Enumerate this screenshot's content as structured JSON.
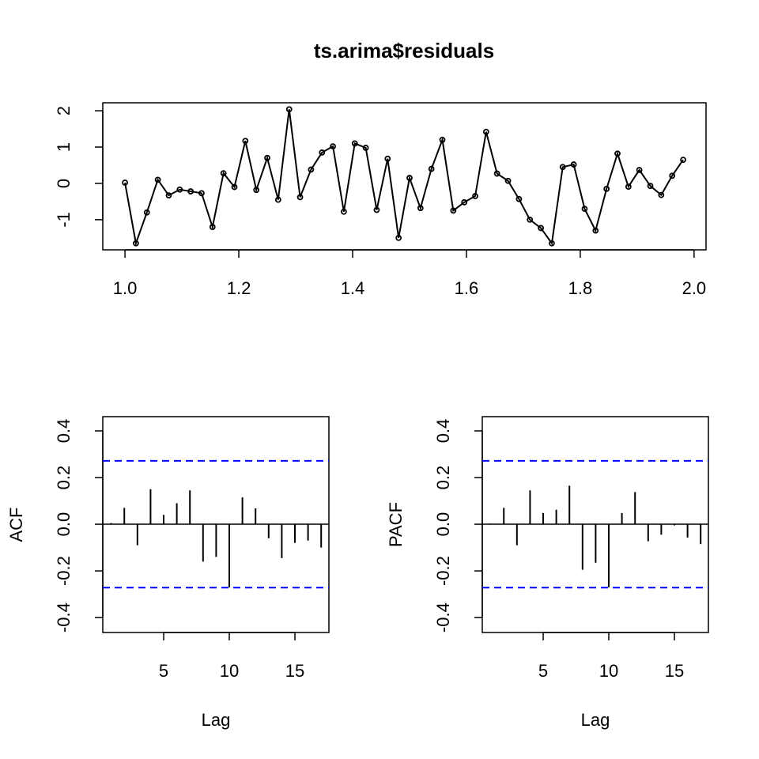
{
  "chart_data": [
    {
      "type": "line",
      "title": "ts.arima$residuals",
      "color": "#000000",
      "x": [
        1,
        1.0192,
        1.0385,
        1.0577,
        1.0769,
        1.0962,
        1.1154,
        1.1346,
        1.1538,
        1.1731,
        1.1923,
        1.2115,
        1.2308,
        1.25,
        1.2692,
        1.2885,
        1.3077,
        1.3269,
        1.3462,
        1.3654,
        1.3846,
        1.4038,
        1.4231,
        1.4423,
        1.4615,
        1.4808,
        1.5,
        1.5192,
        1.5385,
        1.5577,
        1.5769,
        1.5962,
        1.6154,
        1.6346,
        1.6538,
        1.6731,
        1.6923,
        1.7115,
        1.7308,
        1.75,
        1.7692,
        1.7885,
        1.8077,
        1.8269,
        1.8462,
        1.8654,
        1.8846,
        1.9038,
        1.9231,
        1.9423,
        1.9615,
        1.9808
      ],
      "values": [
        0.02,
        -1.65,
        -0.8,
        0.1,
        -0.33,
        -0.17,
        -0.22,
        -0.27,
        -1.2,
        0.28,
        -0.1,
        1.17,
        -0.18,
        0.7,
        -0.45,
        2.04,
        -0.38,
        0.38,
        0.85,
        1.02,
        -0.78,
        1.1,
        0.98,
        -0.73,
        0.68,
        -1.5,
        0.15,
        -0.68,
        0.4,
        1.2,
        -0.75,
        -0.52,
        -0.35,
        1.42,
        0.27,
        0.07,
        -0.43,
        -1.0,
        -1.23,
        -1.65,
        0.45,
        0.52,
        -0.7,
        -1.3,
        -0.15,
        0.82,
        -0.09,
        0.37,
        -0.07,
        -0.32,
        0.21,
        0.65
      ],
      "xlim": [
        0.961,
        2.021
      ],
      "ylim": [
        -1.83,
        2.22
      ],
      "xticks": [
        {
          "value": 1,
          "label": "1.0"
        },
        1.2,
        1.4,
        1.6,
        1.8,
        {
          "value": 2,
          "label": "2.0"
        }
      ],
      "yticks": [
        -1,
        0,
        1,
        2
      ]
    },
    {
      "type": "acf",
      "y_label": "ACF",
      "x_label": "Lag",
      "color": "#000000",
      "ci_color": "#0000ff",
      "ci": 0.2718,
      "x": [
        1,
        2,
        3,
        4,
        5,
        6,
        7,
        8,
        9,
        10,
        11,
        12,
        13,
        14,
        15,
        16,
        17
      ],
      "values": [
        0.005,
        0.07,
        -0.09,
        0.15,
        0.04,
        0.09,
        0.145,
        -0.16,
        -0.14,
        -0.27,
        0.115,
        0.068,
        -0.06,
        -0.145,
        -0.08,
        -0.07,
        -0.1
      ],
      "xlim": [
        0.36,
        17.59
      ],
      "ylim": [
        -0.464,
        0.461
      ],
      "xticks": [
        5,
        10,
        15
      ],
      "yticks": [
        -0.4,
        -0.2,
        {
          "value": 0,
          "label": "0.0"
        },
        0.2,
        0.4
      ]
    },
    {
      "type": "acf",
      "y_label": "PACF",
      "x_label": "Lag",
      "color": "#000000",
      "ci_color": "#0000ff",
      "ci": 0.2718,
      "x": [
        1,
        2,
        3,
        4,
        5,
        6,
        7,
        8,
        9,
        10,
        11,
        12,
        13,
        14,
        15,
        16,
        17
      ],
      "values": [
        0.003,
        0.07,
        -0.09,
        0.145,
        0.048,
        0.062,
        0.165,
        -0.195,
        -0.165,
        -0.27,
        0.048,
        0.138,
        -0.073,
        -0.045,
        -0.005,
        -0.057,
        -0.085
      ],
      "xlim": [
        0.36,
        17.59
      ],
      "ylim": [
        -0.464,
        0.461
      ],
      "xticks": [
        5,
        10,
        15
      ],
      "yticks": [
        -0.4,
        -0.2,
        {
          "value": 0,
          "label": "0.0"
        },
        0.2,
        0.4
      ]
    }
  ]
}
